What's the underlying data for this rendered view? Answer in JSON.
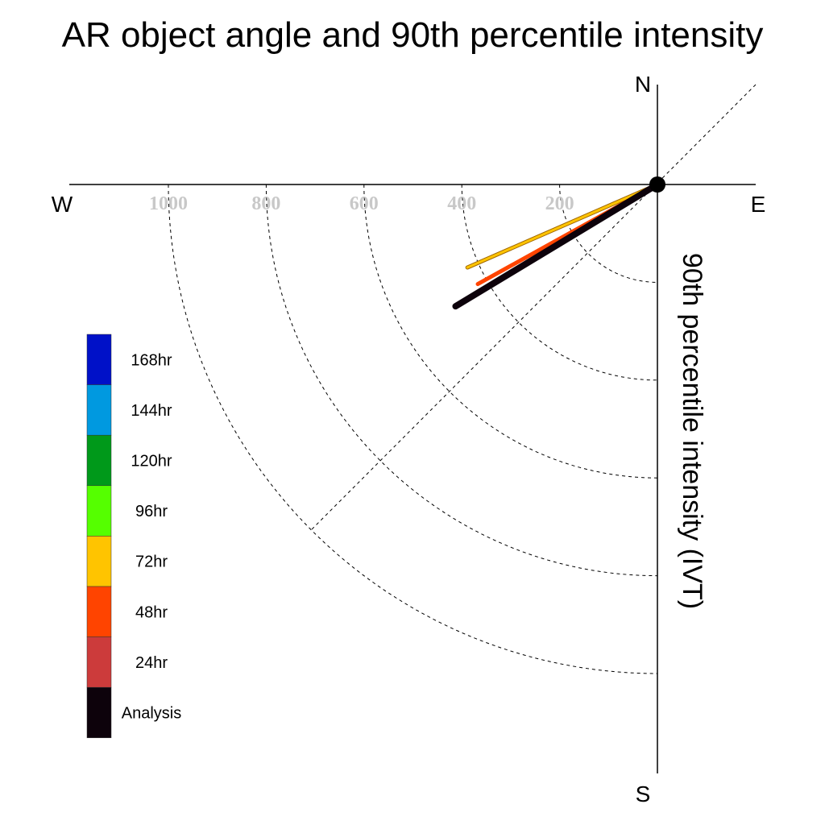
{
  "chart_data": {
    "type": "polar-vector",
    "title": "AR object angle and 90th percentile intensity",
    "ylabel": "90th percentile intensity (IVT)",
    "compass": {
      "north": "N",
      "south": "S",
      "east": "E",
      "west": "W"
    },
    "radial_ticks": [
      "1000",
      "800",
      "600",
      "400",
      "200"
    ],
    "radial_tick_values": [
      1000,
      800,
      600,
      400,
      200
    ],
    "rlim": [
      0,
      1200
    ],
    "grid": true,
    "legend_position": "left",
    "legend": [
      {
        "label": "168hr",
        "color": "#0011c8"
      },
      {
        "label": "144hr",
        "color": "#0099e0"
      },
      {
        "label": "120hr",
        "color": "#00991a"
      },
      {
        "label": "96hr",
        "color": "#55ff00"
      },
      {
        "label": "72hr",
        "color": "#ffc400"
      },
      {
        "label": "48hr",
        "color": "#ff4400"
      },
      {
        "label": "24hr",
        "color": "#cc3b3b"
      },
      {
        "label": "Analysis",
        "color": "#0d020b"
      }
    ],
    "series": [
      {
        "name": "72hr",
        "color": "#ffc400",
        "magnitude": 424,
        "angle_below_west_deg": 23.6
      },
      {
        "name": "48hr",
        "color": "#ff4400",
        "magnitude": 420,
        "angle_below_west_deg": 29.0
      },
      {
        "name": "24hr",
        "color": "#cc3b3b",
        "magnitude": 474,
        "angle_below_west_deg": 31.2
      },
      {
        "name": "Analysis",
        "color": "#0d020b",
        "magnitude": 482,
        "angle_below_west_deg": 31.1
      }
    ]
  }
}
